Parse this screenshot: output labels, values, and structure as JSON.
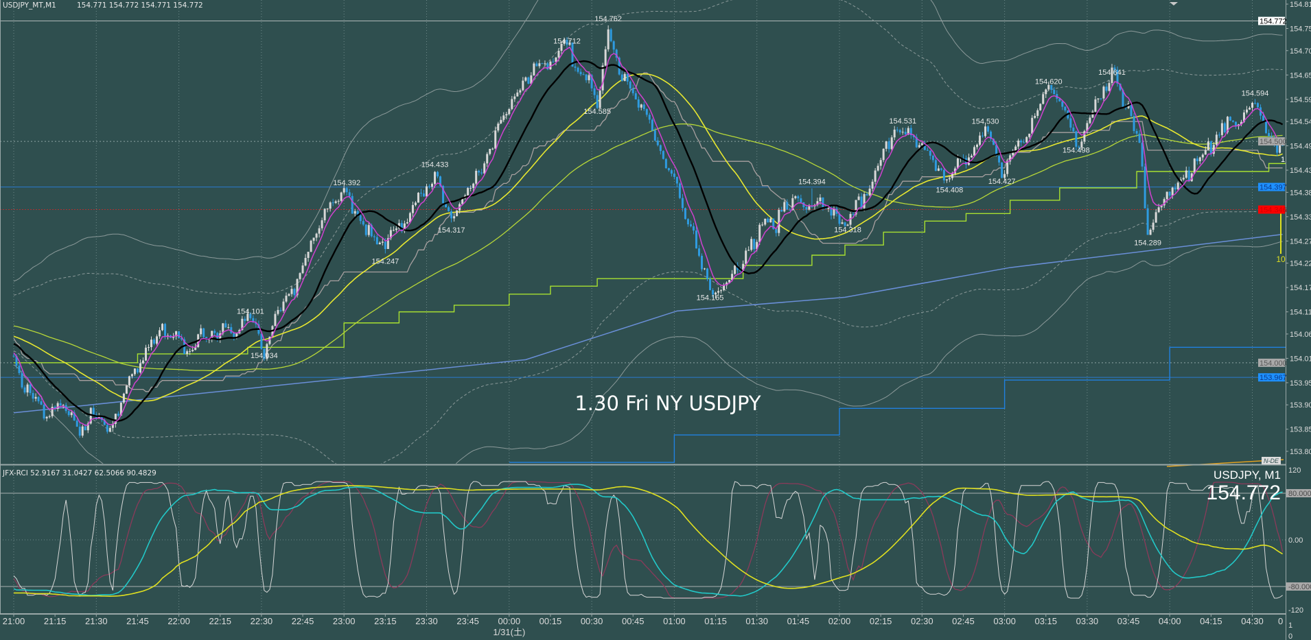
{
  "header": {
    "symbol": "USDJPY_MT,M1",
    "ohlc": "154.771 154.772 154.771 154.772"
  },
  "overlay_text": "1.30 Fri NY USDJPY",
  "price_axis": {
    "ticks": [
      "154.810",
      "154.755",
      "154.705",
      "154.650",
      "154.595",
      "154.545",
      "154.490",
      "154.435",
      "154.385",
      "154.330",
      "154.275",
      "154.225",
      "154.170",
      "154.115",
      "154.065",
      "154.010",
      "153.955",
      "153.905",
      "153.850",
      "153.800"
    ],
    "tags": [
      {
        "value": "154.772",
        "bg": "#ffffff",
        "fg": "#000000"
      },
      {
        "value": "154.500",
        "bg": "#a9a9a9",
        "fg": "#5a5a5a"
      },
      {
        "value": "154.397",
        "bg": "#1e90ff",
        "fg": "#0a3a8a"
      },
      {
        "value": "154.346",
        "bg": "#ff0000",
        "fg": "#d00000"
      },
      {
        "value": "154.000",
        "bg": "#a9a9a9",
        "fg": "#5a5a5a"
      },
      {
        "value": "153.967",
        "bg": "#1e90ff",
        "fg": "#0a3a8a"
      }
    ]
  },
  "time_axis": {
    "labels": [
      "21:00",
      "21:15",
      "21:30",
      "21:45",
      "22:00",
      "22:15",
      "22:30",
      "22:45",
      "23:00",
      "23:15",
      "23:30",
      "23:45",
      "00:00",
      "00:15",
      "00:30",
      "00:45",
      "01:00",
      "01:15",
      "01:30",
      "01:45",
      "02:00",
      "02:15",
      "02:30",
      "02:45",
      "03:00",
      "03:15",
      "03:30",
      "03:45",
      "04:00",
      "04:15",
      "04:30"
    ],
    "clipped_last": "0",
    "date_label": "1/31(土)"
  },
  "indicator": {
    "name_line": "JFX-RCI 52.9167 31.0427 62.5066 90.4829",
    "symbol_label": "USDJPY, M1",
    "price_big": "154.772",
    "axis": {
      "top": "120",
      "upper": "80.0000",
      "zero": "0.00",
      "lower": "-80.0000",
      "bottom": "-120"
    },
    "extra_axis": {
      "one": "1",
      "zero": "0"
    }
  },
  "markers": {
    "vline_label": "10",
    "one_label": "1",
    "nde_label": "N-DE"
  },
  "colors": {
    "background": "#2f4f4f",
    "candle_up": "#d8d8d8",
    "candle_down": "#2f9be0",
    "ma_fast": "#d040d0",
    "ma_mid": "#000000",
    "ma_slow": "#e8e830",
    "ma_100": "#b8d838",
    "ma_long": "#6a8fd8",
    "stair_green": "#a8e030",
    "stair_gray": "#a8a0a0",
    "stair_blue": "#2080e0",
    "band": "#8c9a9a",
    "rci9": "#d8d8d8",
    "rci26": "#8b3a5a",
    "rci52": "#22c8c8",
    "rci100": "#e0e020"
  },
  "chart_data": {
    "type": "candlestick",
    "symbol": "USDJPY",
    "timeframe": "M1",
    "x_unit": "minutes since 21:00",
    "ylim": [
      153.8,
      154.81
    ],
    "price_path": [
      [
        -260,
        154.16
      ],
      [
        -180,
        154.14
      ],
      [
        -100,
        154.12
      ],
      [
        -40,
        154.08
      ],
      [
        -10,
        154.04
      ],
      [
        0,
        154.0
      ],
      [
        5,
        153.94
      ],
      [
        11,
        153.88
      ],
      [
        18,
        153.9
      ],
      [
        24,
        153.85
      ],
      [
        30,
        153.88
      ],
      [
        35,
        153.86
      ],
      [
        43,
        153.96
      ],
      [
        49,
        154.04
      ],
      [
        54,
        154.06
      ],
      [
        60,
        154.04
      ],
      [
        64,
        154.02
      ],
      [
        72,
        154.07
      ],
      [
        80,
        154.09
      ],
      [
        86,
        154.1
      ],
      [
        91,
        154.035
      ],
      [
        98,
        154.14
      ],
      [
        106,
        154.24
      ],
      [
        114,
        154.35
      ],
      [
        121,
        154.39
      ],
      [
        128,
        154.3
      ],
      [
        135,
        154.247
      ],
      [
        142,
        154.3
      ],
      [
        148,
        154.38
      ],
      [
        153,
        154.433
      ],
      [
        159,
        154.317
      ],
      [
        166,
        154.4
      ],
      [
        174,
        154.5
      ],
      [
        182,
        154.6
      ],
      [
        190,
        154.68
      ],
      [
        201,
        154.712
      ],
      [
        206,
        154.66
      ],
      [
        212,
        154.585
      ],
      [
        216,
        154.762
      ],
      [
        222,
        154.64
      ],
      [
        228,
        154.58
      ],
      [
        234,
        154.5
      ],
      [
        240,
        154.42
      ],
      [
        246,
        154.3
      ],
      [
        253,
        154.165
      ],
      [
        260,
        154.2
      ],
      [
        268,
        154.26
      ],
      [
        276,
        154.33
      ],
      [
        286,
        154.36
      ],
      [
        296,
        154.35
      ],
      [
        303,
        154.318
      ],
      [
        310,
        154.4
      ],
      [
        316,
        154.48
      ],
      [
        323,
        154.531
      ],
      [
        331,
        154.46
      ],
      [
        340,
        154.408
      ],
      [
        347,
        154.47
      ],
      [
        353,
        154.53
      ],
      [
        359,
        154.427
      ],
      [
        367,
        154.52
      ],
      [
        376,
        154.62
      ],
      [
        382,
        154.55
      ],
      [
        386,
        154.498
      ],
      [
        399,
        154.641
      ],
      [
        405,
        154.58
      ],
      [
        409,
        154.5
      ],
      [
        412,
        154.289
      ],
      [
        418,
        154.38
      ],
      [
        425,
        154.4
      ],
      [
        432,
        154.46
      ],
      [
        440,
        154.53
      ],
      [
        446,
        154.56
      ],
      [
        451,
        154.594
      ],
      [
        456,
        154.52
      ],
      [
        461,
        154.5
      ]
    ],
    "annotations": [
      {
        "t": 86,
        "price": 154.101,
        "kind": "high",
        "label": "154.101"
      },
      {
        "t": 91,
        "price": 154.034,
        "kind": "low",
        "label": "154.034"
      },
      {
        "t": 121,
        "price": 154.392,
        "kind": "high",
        "label": "154.392"
      },
      {
        "t": 135,
        "price": 154.247,
        "kind": "low",
        "label": "154.247"
      },
      {
        "t": 153,
        "price": 154.433,
        "kind": "high",
        "label": "154.433"
      },
      {
        "t": 159,
        "price": 154.317,
        "kind": "low",
        "label": "154.317"
      },
      {
        "t": 201,
        "price": 154.712,
        "kind": "high",
        "label": "154.712"
      },
      {
        "t": 212,
        "price": 154.585,
        "kind": "low",
        "label": "154.585"
      },
      {
        "t": 216,
        "price": 154.762,
        "kind": "high",
        "label": "154.762"
      },
      {
        "t": 253,
        "price": 154.165,
        "kind": "low",
        "label": "154.165"
      },
      {
        "t": 303,
        "price": 154.318,
        "kind": "low",
        "label": "154.318"
      },
      {
        "t": 290,
        "price": 154.394,
        "kind": "high",
        "label": "154.394"
      },
      {
        "t": 323,
        "price": 154.531,
        "kind": "high",
        "label": "154.531"
      },
      {
        "t": 340,
        "price": 154.408,
        "kind": "low",
        "label": "154.408"
      },
      {
        "t": 353,
        "price": 154.53,
        "kind": "high",
        "label": "154.530"
      },
      {
        "t": 359,
        "price": 154.427,
        "kind": "low",
        "label": "154.427"
      },
      {
        "t": 376,
        "price": 154.62,
        "kind": "high",
        "label": "154.620"
      },
      {
        "t": 386,
        "price": 154.498,
        "kind": "low",
        "label": "154.498"
      },
      {
        "t": 399,
        "price": 154.641,
        "kind": "high",
        "label": "154.641"
      },
      {
        "t": 412,
        "price": 154.289,
        "kind": "low",
        "label": "154.289"
      },
      {
        "t": 451,
        "price": 154.594,
        "kind": "high",
        "label": "154.594"
      }
    ],
    "long_ma": [
      [
        0,
        153.887
      ],
      [
        186,
        154.007
      ],
      [
        241,
        154.117
      ],
      [
        302,
        154.148
      ],
      [
        362,
        154.215
      ],
      [
        461,
        154.29
      ]
    ],
    "stair_green": [
      [
        0,
        154.0
      ],
      [
        45,
        154.02
      ],
      [
        85,
        154.035
      ],
      [
        120,
        154.09
      ],
      [
        140,
        154.115
      ],
      [
        160,
        154.13
      ],
      [
        180,
        154.155
      ],
      [
        195,
        154.173
      ],
      [
        212,
        154.19
      ],
      [
        265,
        154.22
      ],
      [
        290,
        154.243
      ],
      [
        302,
        154.266
      ],
      [
        316,
        154.295
      ],
      [
        331,
        154.32
      ],
      [
        346,
        154.337
      ],
      [
        362,
        154.367
      ],
      [
        380,
        154.395
      ],
      [
        408,
        154.432
      ],
      [
        456,
        154.45
      ]
    ],
    "stair_blue": [
      [
        180,
        153.775
      ],
      [
        240,
        153.837
      ],
      [
        300,
        153.897
      ],
      [
        360,
        153.961
      ],
      [
        420,
        154.035
      ]
    ],
    "hlines": {
      "top": 154.772,
      "dotted_mid": 154.5,
      "blue_upper": 154.397,
      "red": 154.346,
      "gray": 154.0,
      "blue_lower": 153.967
    },
    "indicators": {
      "ma_periods": [
        6,
        20,
        50,
        100
      ],
      "band_period": 120,
      "rci_periods": [
        9,
        26,
        52,
        100
      ]
    },
    "subwindow": {
      "type": "line",
      "title": "JFX-RCI",
      "ylim": [
        -120,
        120
      ],
      "levels": [
        80,
        0,
        -80
      ]
    }
  }
}
